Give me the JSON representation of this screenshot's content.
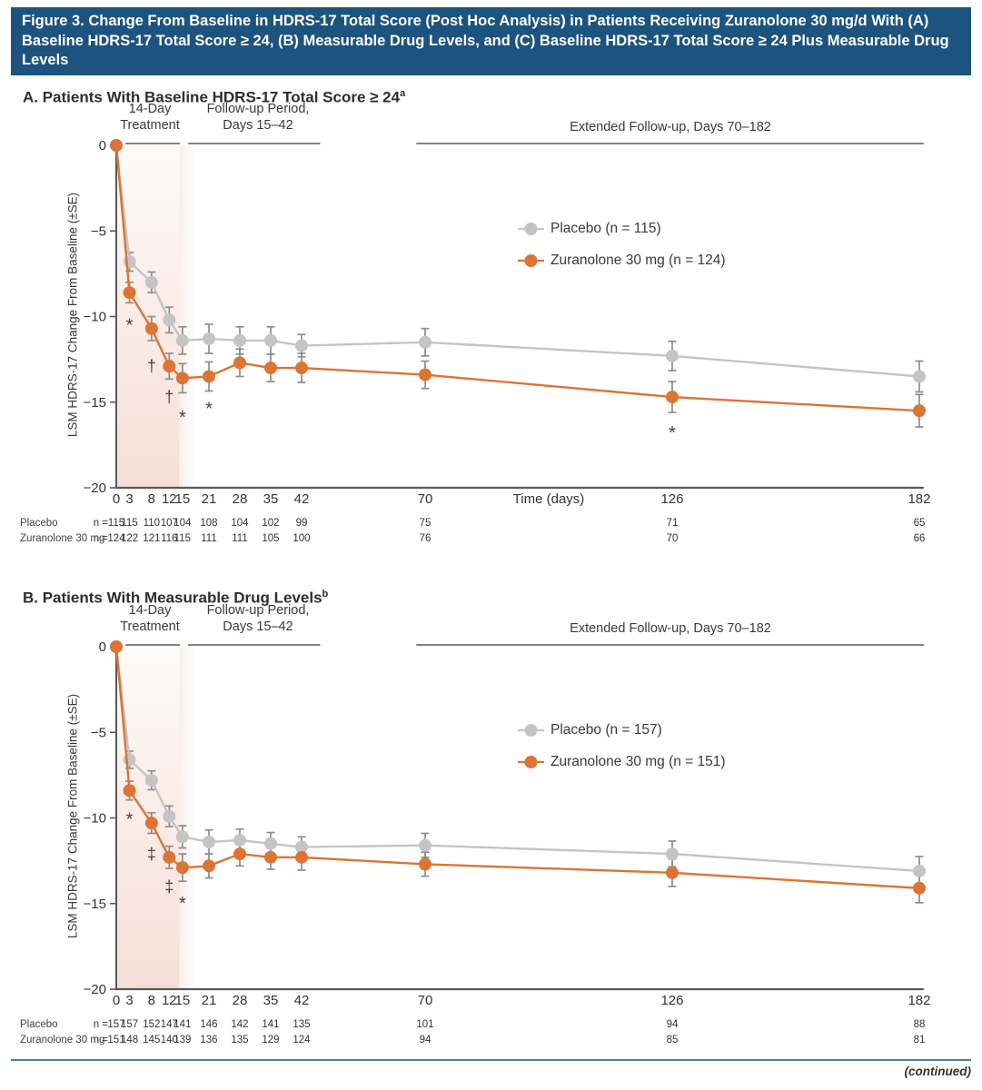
{
  "figure": {
    "title": "Figure 3. Change From Baseline in HDRS-17 Total Score (Post Hoc Analysis) in Patients Receiving Zuranolone 30 mg/d With (A) Baseline HDRS-17 Total Score ≥ 24, (B) Measurable Drug Levels, and (C) Baseline HDRS-17 Total Score ≥ 24 Plus Measurable Drug Levels",
    "continued": "(continued)"
  },
  "colors": {
    "title_bar": "#1D537F",
    "axis": "#58595B",
    "text": "#333333",
    "error_bar": "#8E8D8D",
    "treatment_shade": "#F5DCD1",
    "placebo": "#C4C4C5",
    "zuranolone": "#DB7434",
    "divider": "#4D7EA8",
    "annotation": "#414042"
  },
  "chart_data": [
    {
      "type": "line",
      "panel_label": "A. Patients With Baseline HDRS-17 Total Score ≥ 24",
      "panel_sup": "a",
      "ylabel": "LSM HDRS-17 Change From Baseline (±SE)",
      "xlabel": "Time (days)",
      "ylim": [
        -20,
        0
      ],
      "yticks": [
        {
          "value": 0,
          "label": "0"
        },
        {
          "value": -5,
          "label": "−5"
        },
        {
          "value": -10,
          "label": "−10"
        },
        {
          "value": -15,
          "label": "−15"
        },
        {
          "value": -20,
          "label": "−20"
        }
      ],
      "x": [
        0,
        3,
        8,
        12,
        15,
        21,
        28,
        35,
        42,
        70,
        126,
        182
      ],
      "treatment_shade_days": [
        0,
        14.3
      ],
      "periods": [
        {
          "lines": [
            "14-Day",
            "Treatment"
          ],
          "underline_days": [
            2.1,
            14.4
          ]
        },
        {
          "lines": [
            "Follow-up Period,",
            "Days 15–42"
          ],
          "underline_days": [
            16.3,
            46.2
          ]
        },
        {
          "lines": [
            "Extended Follow-up, Days 70–182"
          ],
          "underline_days": [
            68,
            183
          ]
        }
      ],
      "series": [
        {
          "name": "Placebo (n = 115)",
          "color": "#C4C4C5",
          "values": [
            0,
            -6.8,
            -8.0,
            -10.2,
            -11.4,
            -11.3,
            -11.4,
            -11.4,
            -11.7,
            -11.5,
            -12.3,
            -13.5
          ],
          "se": [
            0,
            0.55,
            0.6,
            0.75,
            0.8,
            0.85,
            0.8,
            0.8,
            0.65,
            0.8,
            0.85,
            0.9
          ]
        },
        {
          "name": "Zuranolone 30 mg (n = 124)",
          "color": "#DB7434",
          "values": [
            0,
            -8.6,
            -10.7,
            -12.9,
            -13.6,
            -13.5,
            -12.7,
            -13.0,
            -13.0,
            -13.4,
            -14.7,
            -15.5
          ],
          "se": [
            0,
            0.6,
            0.7,
            0.75,
            0.85,
            0.85,
            0.8,
            0.8,
            0.85,
            0.8,
            0.9,
            0.95
          ]
        }
      ],
      "annotations": [
        {
          "symbol": "*",
          "day": 3,
          "y": -10.2
        },
        {
          "symbol": "†",
          "day": 8,
          "y": -12.9
        },
        {
          "symbol": "†",
          "day": 12,
          "y": -14.7
        },
        {
          "symbol": "*",
          "day": 15,
          "y": -15.6
        },
        {
          "symbol": "*",
          "day": 21,
          "y": -15.1
        },
        {
          "symbol": "*",
          "day": 126,
          "y": -16.5
        }
      ],
      "n_table": {
        "rows": [
          {
            "label": "Placebo",
            "prefix": "n =",
            "values": [
              115,
              115,
              110,
              107,
              104,
              108,
              104,
              102,
              99,
              75,
              71,
              65
            ]
          },
          {
            "label": "Zuranolone 30 mg",
            "prefix": "n =",
            "values": [
              124,
              122,
              121,
              116,
              115,
              111,
              111,
              105,
              100,
              76,
              70,
              66
            ]
          }
        ]
      }
    },
    {
      "type": "line",
      "panel_label": "B. Patients With Measurable Drug Levels",
      "panel_sup": "b",
      "ylabel": "LSM HDRS-17 Change From Baseline (±SE)",
      "xlabel": "",
      "ylim": [
        -20,
        0
      ],
      "yticks": [
        {
          "value": 0,
          "label": "0"
        },
        {
          "value": -5,
          "label": "−5"
        },
        {
          "value": -10,
          "label": "−10"
        },
        {
          "value": -15,
          "label": "−15"
        },
        {
          "value": -20,
          "label": "−20"
        }
      ],
      "x": [
        0,
        3,
        8,
        12,
        15,
        21,
        28,
        35,
        42,
        70,
        126,
        182
      ],
      "treatment_shade_days": [
        0,
        14.3
      ],
      "periods": [
        {
          "lines": [
            "14-Day",
            "Treatment"
          ],
          "underline_days": [
            2.1,
            14.4
          ]
        },
        {
          "lines": [
            "Follow-up Period,",
            "Days 15–42"
          ],
          "underline_days": [
            16.3,
            46.2
          ]
        },
        {
          "lines": [
            "Extended Follow-up, Days 70–182"
          ],
          "underline_days": [
            68,
            183
          ]
        }
      ],
      "series": [
        {
          "name": "Placebo (n = 157)",
          "color": "#C4C4C5",
          "values": [
            0,
            -6.6,
            -7.8,
            -9.9,
            -11.1,
            -11.4,
            -11.3,
            -11.5,
            -11.7,
            -11.6,
            -12.1,
            -13.1
          ],
          "se": [
            0,
            0.5,
            0.55,
            0.6,
            0.65,
            0.7,
            0.65,
            0.65,
            0.6,
            0.7,
            0.75,
            0.85
          ]
        },
        {
          "name": "Zuranolone 30 mg (n = 151)",
          "color": "#DB7434",
          "values": [
            0,
            -8.4,
            -10.3,
            -12.3,
            -12.9,
            -12.8,
            -12.1,
            -12.3,
            -12.3,
            -12.7,
            -13.2,
            -14.1
          ],
          "se": [
            0,
            0.55,
            0.6,
            0.65,
            0.8,
            0.7,
            0.7,
            0.7,
            0.75,
            0.7,
            0.8,
            0.85
          ]
        }
      ],
      "annotations": [
        {
          "symbol": "*",
          "day": 3,
          "y": -9.8
        },
        {
          "symbol": "‡",
          "day": 8,
          "y": -12.1
        },
        {
          "symbol": "‡",
          "day": 12,
          "y": -14.0
        },
        {
          "symbol": "*",
          "day": 15,
          "y": -14.7
        }
      ],
      "n_table": {
        "rows": [
          {
            "label": "Placebo",
            "prefix": "n =",
            "values": [
              157,
              157,
              152,
              147,
              141,
              146,
              142,
              141,
              135,
              101,
              94,
              88
            ]
          },
          {
            "label": "Zuranolone 30 mg",
            "prefix": "n =",
            "values": [
              151,
              148,
              145,
              140,
              139,
              136,
              135,
              129,
              124,
              94,
              85,
              81
            ]
          }
        ]
      }
    }
  ]
}
